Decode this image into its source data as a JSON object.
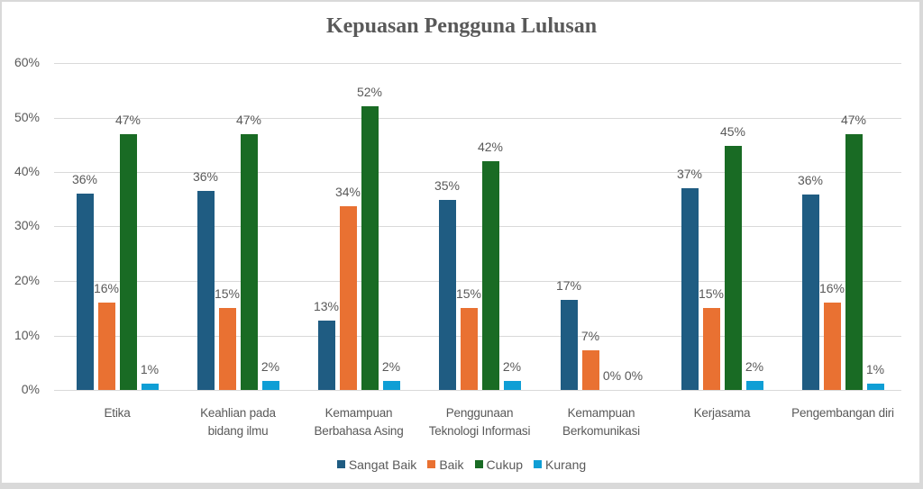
{
  "chart_data": {
    "type": "bar",
    "title": "Kepuasan Pengguna Lulusan",
    "xlabel": "",
    "ylabel": "",
    "ylim": [
      0,
      0.6
    ],
    "yticks": [
      "0%",
      "10%",
      "20%",
      "30%",
      "40%",
      "50%",
      "60%"
    ],
    "grid": true,
    "legend_position": "bottom",
    "categories": [
      "Etika",
      "Keahlian pada bidang ilmu",
      "Kemampuan Berbahasa Asing",
      "Penggunaan Teknologi Informasi",
      "Kemampuan Berkomunikasi",
      "Kerjasama",
      "Pengembangan diri"
    ],
    "category_lines": [
      [
        "Etika"
      ],
      [
        "Keahlian pada",
        "bidang ilmu"
      ],
      [
        "Kemampuan",
        "Berbahasa Asing"
      ],
      [
        "Penggunaan",
        "Teknologi Informasi"
      ],
      [
        "Kemampuan",
        "Berkomunikasi"
      ],
      [
        "Kerjasama"
      ],
      [
        "Pengembangan diri"
      ]
    ],
    "series": [
      {
        "name": "Sangat Baik",
        "color": "#1f5c82",
        "values": [
          0.36,
          0.365,
          0.127,
          0.348,
          0.165,
          0.371,
          0.359
        ],
        "labels": [
          "36%",
          "36%",
          "13%",
          "35%",
          "17%",
          "37%",
          "36%"
        ]
      },
      {
        "name": "Baik",
        "color": "#e97132",
        "values": [
          0.16,
          0.15,
          0.337,
          0.15,
          0.073,
          0.15,
          0.161
        ],
        "labels": [
          "16%",
          "15%",
          "34%",
          "15%",
          "7%",
          "15%",
          "16%"
        ]
      },
      {
        "name": "Cukup",
        "color": "#196b24",
        "values": [
          0.469,
          0.469,
          0.52,
          0.42,
          0.0,
          0.448,
          0.469
        ],
        "labels": [
          "47%",
          "47%",
          "52%",
          "42%",
          "0%",
          "45%",
          "47%"
        ]
      },
      {
        "name": "Kurang",
        "color": "#0f9ed5",
        "values": [
          0.012,
          0.016,
          0.016,
          0.016,
          0.0,
          0.016,
          0.012
        ],
        "labels": [
          "1%",
          "2%",
          "2%",
          "2%",
          "0%",
          "2%",
          "1%"
        ]
      }
    ]
  }
}
